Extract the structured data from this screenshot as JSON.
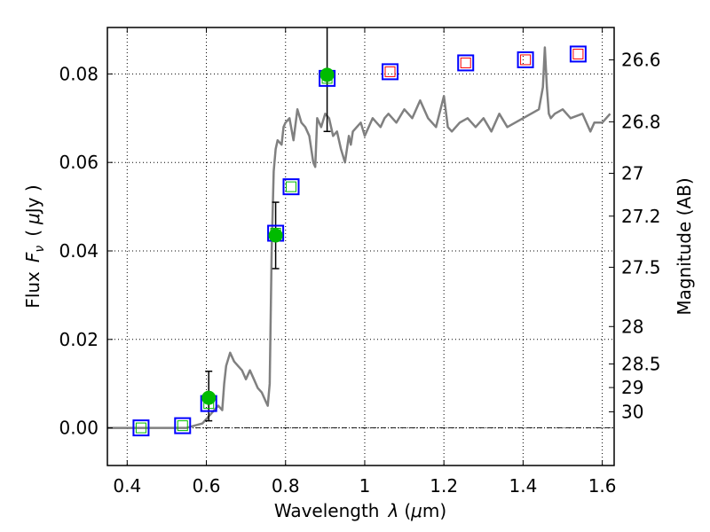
{
  "chart_data": {
    "type": "scatter",
    "xlabel_text": "Wavelength",
    "xlabel_symbol": "λ",
    "xlabel_unit_open": "(",
    "xlabel_unit_mu": "μ",
    "xlabel_unit_rest": "m)",
    "ylabel_text": "Flux",
    "ylabel_symbol": "F",
    "ylabel_sub": "ν",
    "ylabel_unit_open": "(",
    "ylabel_unit_mu": "μ",
    "ylabel_unit_rest": "Jy )",
    "right_label": "Magnitude (AB)",
    "xlim": [
      0.35,
      1.63
    ],
    "ylim": [
      -0.0085,
      0.0905
    ],
    "x_ticks": [
      0.4,
      0.6,
      0.8,
      1.0,
      1.2,
      1.4,
      1.6
    ],
    "x_tick_labels": [
      "0.4",
      "0.6",
      "0.8",
      "1",
      "1.2",
      "1.4",
      "1.6"
    ],
    "y_ticks": [
      0.0,
      0.02,
      0.04,
      0.06,
      0.08
    ],
    "y_tick_labels": [
      "0.00",
      "0.02",
      "0.04",
      "0.06",
      "0.08"
    ],
    "mag_ticks": [
      26.6,
      26.8,
      27,
      27.2,
      27.5,
      28,
      28.5,
      29,
      30
    ],
    "mag_tick_labels": [
      "26.6",
      "26.8",
      "27",
      "27.2",
      "27.5",
      "28",
      "28.5",
      "29",
      "30"
    ],
    "zero_line": 0.0,
    "series": [
      {
        "name": "model spectrum",
        "kind": "line",
        "color": "#808080",
        "x": [
          0.35,
          0.55,
          0.57,
          0.59,
          0.6,
          0.61,
          0.62,
          0.63,
          0.64,
          0.645,
          0.65,
          0.66,
          0.67,
          0.68,
          0.69,
          0.7,
          0.71,
          0.72,
          0.73,
          0.74,
          0.75,
          0.755,
          0.76,
          0.765,
          0.77,
          0.775,
          0.78,
          0.79,
          0.795,
          0.8,
          0.81,
          0.82,
          0.83,
          0.84,
          0.85,
          0.86,
          0.87,
          0.875,
          0.88,
          0.89,
          0.9,
          0.91,
          0.92,
          0.93,
          0.94,
          0.95,
          0.96,
          0.965,
          0.97,
          0.98,
          0.99,
          1.0,
          1.02,
          1.04,
          1.05,
          1.06,
          1.08,
          1.1,
          1.12,
          1.14,
          1.16,
          1.18,
          1.2,
          1.21,
          1.22,
          1.24,
          1.26,
          1.28,
          1.3,
          1.32,
          1.34,
          1.36,
          1.38,
          1.4,
          1.42,
          1.44,
          1.45,
          1.455,
          1.46,
          1.465,
          1.47,
          1.48,
          1.5,
          1.52,
          1.55,
          1.57,
          1.58,
          1.6,
          1.62
        ],
        "y": [
          0.0,
          0.0,
          0.0005,
          0.001,
          0.002,
          0.003,
          0.004,
          0.005,
          0.004,
          0.01,
          0.014,
          0.017,
          0.015,
          0.014,
          0.013,
          0.011,
          0.013,
          0.011,
          0.009,
          0.008,
          0.006,
          0.005,
          0.01,
          0.04,
          0.058,
          0.063,
          0.065,
          0.064,
          0.068,
          0.069,
          0.07,
          0.065,
          0.072,
          0.069,
          0.068,
          0.066,
          0.06,
          0.059,
          0.07,
          0.068,
          0.071,
          0.07,
          0.066,
          0.067,
          0.063,
          0.06,
          0.066,
          0.064,
          0.067,
          0.068,
          0.069,
          0.066,
          0.07,
          0.068,
          0.07,
          0.071,
          0.069,
          0.072,
          0.07,
          0.074,
          0.07,
          0.068,
          0.075,
          0.068,
          0.067,
          0.069,
          0.07,
          0.068,
          0.07,
          0.067,
          0.071,
          0.068,
          0.069,
          0.07,
          0.071,
          0.072,
          0.077,
          0.086,
          0.077,
          0.071,
          0.07,
          0.071,
          0.072,
          0.07,
          0.071,
          0.067,
          0.069,
          0.069,
          0.071
        ],
        "label": ""
      },
      {
        "name": "model photometry",
        "kind": "square-blue",
        "color": "#0000ff",
        "x": [
          0.435,
          0.54,
          0.606,
          0.775,
          0.814,
          0.905
        ],
        "y": [
          0.0,
          0.0005,
          0.0055,
          0.044,
          0.0545,
          0.079
        ],
        "label": ""
      },
      {
        "name": "model photometry inner",
        "kind": "square-green-inner",
        "color": "#00bb00",
        "x": [
          0.435,
          0.54,
          0.606,
          0.775,
          0.814,
          0.905
        ],
        "y": [
          0.0,
          0.0005,
          0.0055,
          0.044,
          0.0545,
          0.079
        ],
        "label": ""
      },
      {
        "name": "NIR model photometry",
        "kind": "square-blue-red",
        "color": "#0000ff",
        "x": [
          1.064,
          1.255,
          1.406,
          1.539
        ],
        "y": [
          0.0805,
          0.0825,
          0.0832,
          0.0845
        ],
        "label": ""
      },
      {
        "name": "observed fluxes",
        "kind": "circle",
        "color": "#00bb00",
        "x": [
          0.606,
          0.775,
          0.905
        ],
        "y": [
          0.0068,
          0.0435,
          0.0798
        ],
        "yerr_low": [
          0.0052,
          0.0075,
          0.0128
        ],
        "yerr_high": [
          0.006,
          0.0075,
          0.0112
        ],
        "label": ""
      }
    ]
  }
}
